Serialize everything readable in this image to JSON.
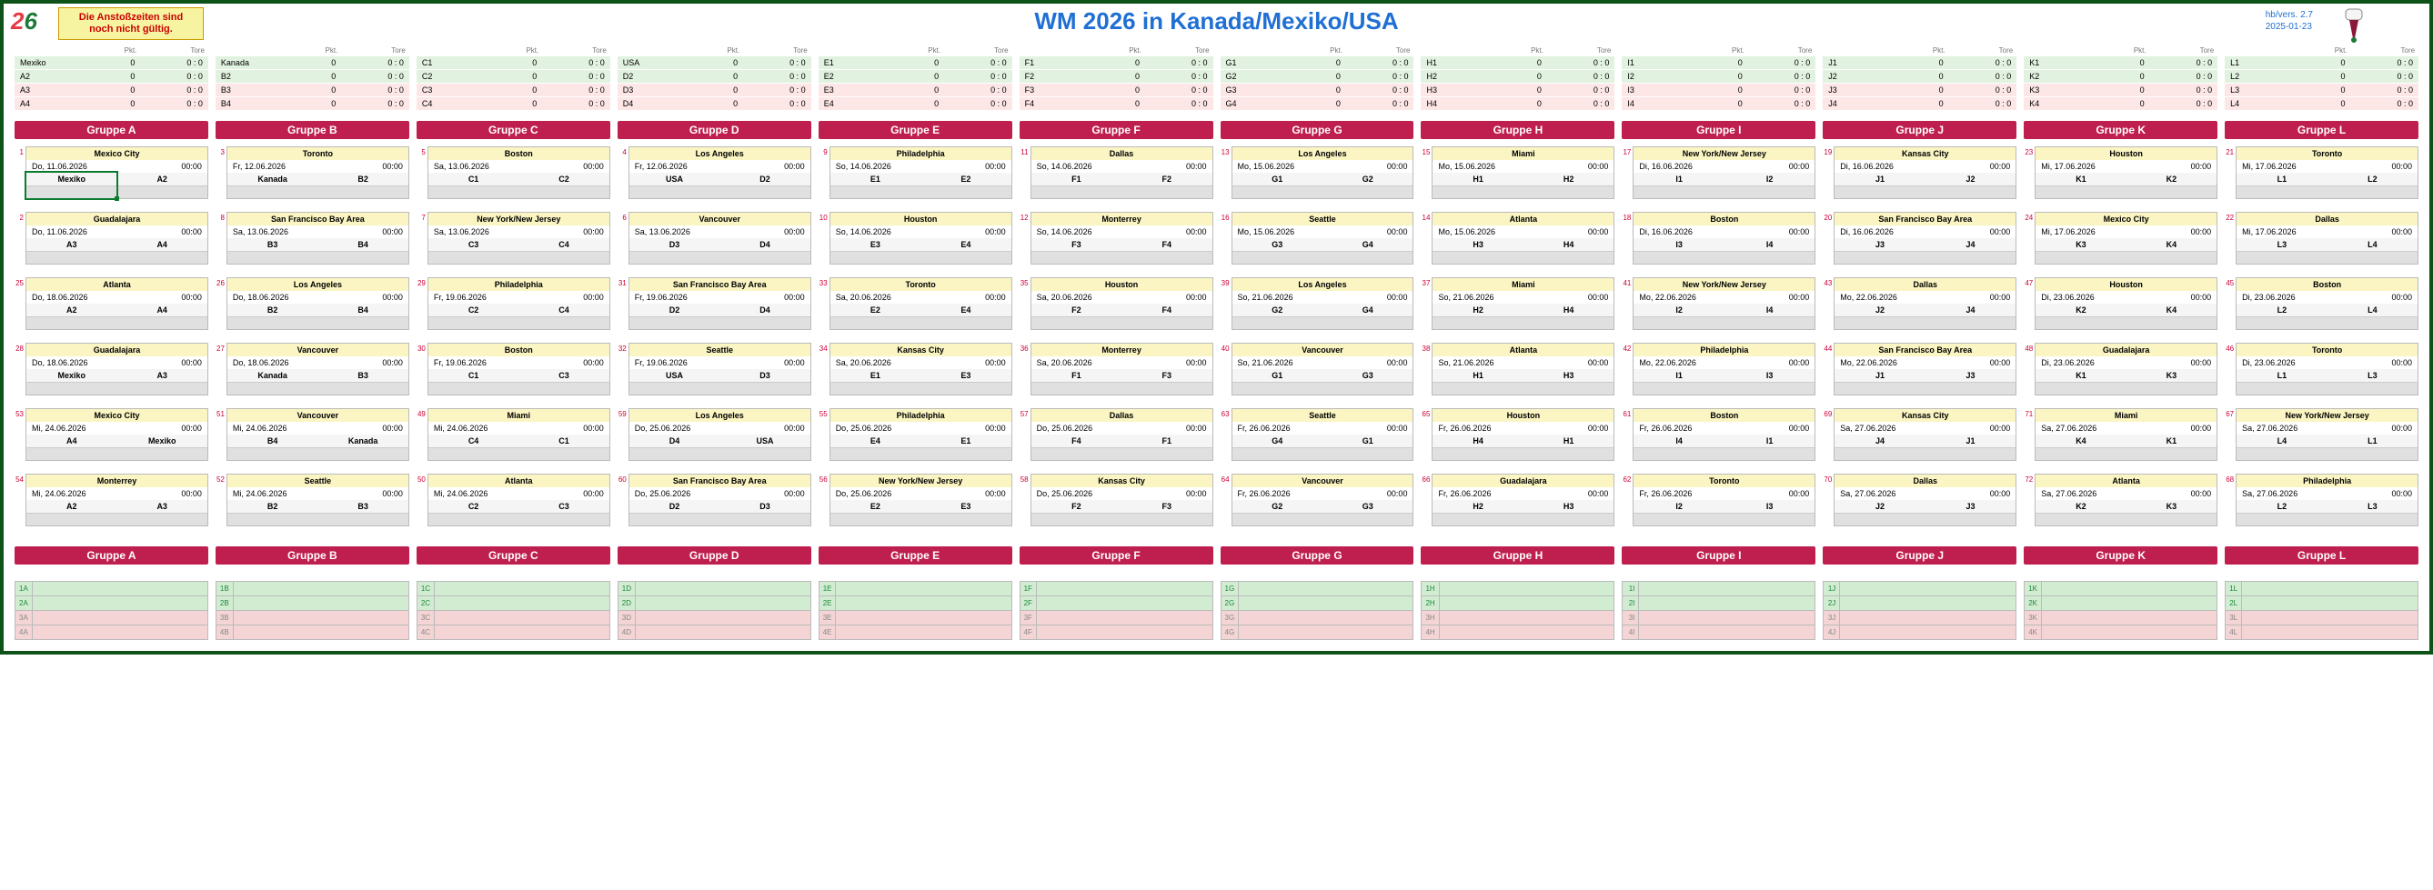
{
  "meta": {
    "title": "WM 2026 in Kanada/Mexiko/USA",
    "warning": "Die Anstoßzeiten sind noch nicht gültig.",
    "version": "hb/vers. 2.7",
    "date": "2025-01-23",
    "colors": {
      "border": "#0d5218",
      "title": "#1f6fd4",
      "group_hdr_bg": "#bf1f4e",
      "match_num": "#cc0033",
      "venue_bg": "#faf5c2"
    }
  },
  "groups": [
    "A",
    "B",
    "C",
    "D",
    "E",
    "F",
    "G",
    "H",
    "I",
    "J",
    "K",
    "L"
  ],
  "standings_headers": [
    "",
    "Pkt.",
    "Tore"
  ],
  "standings": {
    "A": [
      [
        "Mexiko",
        "0",
        "0 : 0"
      ],
      [
        "A2",
        "0",
        "0 : 0"
      ],
      [
        "A3",
        "0",
        "0 : 0"
      ],
      [
        "A4",
        "0",
        "0 : 0"
      ]
    ],
    "B": [
      [
        "Kanada",
        "0",
        "0 : 0"
      ],
      [
        "B2",
        "0",
        "0 : 0"
      ],
      [
        "B3",
        "0",
        "0 : 0"
      ],
      [
        "B4",
        "0",
        "0 : 0"
      ]
    ],
    "C": [
      [
        "C1",
        "0",
        "0 : 0"
      ],
      [
        "C2",
        "0",
        "0 : 0"
      ],
      [
        "C3",
        "0",
        "0 : 0"
      ],
      [
        "C4",
        "0",
        "0 : 0"
      ]
    ],
    "D": [
      [
        "USA",
        "0",
        "0 : 0"
      ],
      [
        "D2",
        "0",
        "0 : 0"
      ],
      [
        "D3",
        "0",
        "0 : 0"
      ],
      [
        "D4",
        "0",
        "0 : 0"
      ]
    ],
    "E": [
      [
        "E1",
        "0",
        "0 : 0"
      ],
      [
        "E2",
        "0",
        "0 : 0"
      ],
      [
        "E3",
        "0",
        "0 : 0"
      ],
      [
        "E4",
        "0",
        "0 : 0"
      ]
    ],
    "F": [
      [
        "F1",
        "0",
        "0 : 0"
      ],
      [
        "F2",
        "0",
        "0 : 0"
      ],
      [
        "F3",
        "0",
        "0 : 0"
      ],
      [
        "F4",
        "0",
        "0 : 0"
      ]
    ],
    "G": [
      [
        "G1",
        "0",
        "0 : 0"
      ],
      [
        "G2",
        "0",
        "0 : 0"
      ],
      [
        "G3",
        "0",
        "0 : 0"
      ],
      [
        "G4",
        "0",
        "0 : 0"
      ]
    ],
    "H": [
      [
        "H1",
        "0",
        "0 : 0"
      ],
      [
        "H2",
        "0",
        "0 : 0"
      ],
      [
        "H3",
        "0",
        "0 : 0"
      ],
      [
        "H4",
        "0",
        "0 : 0"
      ]
    ],
    "I": [
      [
        "I1",
        "0",
        "0 : 0"
      ],
      [
        "I2",
        "0",
        "0 : 0"
      ],
      [
        "I3",
        "0",
        "0 : 0"
      ],
      [
        "I4",
        "0",
        "0 : 0"
      ]
    ],
    "J": [
      [
        "J1",
        "0",
        "0 : 0"
      ],
      [
        "J2",
        "0",
        "0 : 0"
      ],
      [
        "J3",
        "0",
        "0 : 0"
      ],
      [
        "J4",
        "0",
        "0 : 0"
      ]
    ],
    "K": [
      [
        "K1",
        "0",
        "0 : 0"
      ],
      [
        "K2",
        "0",
        "0 : 0"
      ],
      [
        "K3",
        "0",
        "0 : 0"
      ],
      [
        "K4",
        "0",
        "0 : 0"
      ]
    ],
    "L": [
      [
        "L1",
        "0",
        "0 : 0"
      ],
      [
        "L2",
        "0",
        "0 : 0"
      ],
      [
        "L3",
        "0",
        "0 : 0"
      ],
      [
        "L4",
        "0",
        "0 : 0"
      ]
    ]
  },
  "group_label": "Gruppe",
  "matches": {
    "A": [
      {
        "n": 1,
        "v": "Mexico City",
        "d": "Do, 11.06.2026",
        "t": "00:00",
        "h": "Mexiko",
        "a": "A2"
      },
      {
        "n": 2,
        "v": "Guadalajara",
        "d": "Do, 11.06.2026",
        "t": "00:00",
        "h": "A3",
        "a": "A4"
      },
      {
        "n": 25,
        "v": "Atlanta",
        "d": "Do, 18.06.2026",
        "t": "00:00",
        "h": "A2",
        "a": "A4"
      },
      {
        "n": 28,
        "v": "Guadalajara",
        "d": "Do, 18.06.2026",
        "t": "00:00",
        "h": "Mexiko",
        "a": "A3"
      },
      {
        "n": 53,
        "v": "Mexico City",
        "d": "Mi, 24.06.2026",
        "t": "00:00",
        "h": "A4",
        "a": "Mexiko"
      },
      {
        "n": 54,
        "v": "Monterrey",
        "d": "Mi, 24.06.2026",
        "t": "00:00",
        "h": "A2",
        "a": "A3"
      }
    ],
    "B": [
      {
        "n": 3,
        "v": "Toronto",
        "d": "Fr, 12.06.2026",
        "t": "00:00",
        "h": "Kanada",
        "a": "B2"
      },
      {
        "n": 8,
        "v": "San Francisco Bay Area",
        "d": "Sa, 13.06.2026",
        "t": "00:00",
        "h": "B3",
        "a": "B4"
      },
      {
        "n": 26,
        "v": "Los Angeles",
        "d": "Do, 18.06.2026",
        "t": "00:00",
        "h": "B2",
        "a": "B4"
      },
      {
        "n": 27,
        "v": "Vancouver",
        "d": "Do, 18.06.2026",
        "t": "00:00",
        "h": "Kanada",
        "a": "B3"
      },
      {
        "n": 51,
        "v": "Vancouver",
        "d": "Mi, 24.06.2026",
        "t": "00:00",
        "h": "B4",
        "a": "Kanada"
      },
      {
        "n": 52,
        "v": "Seattle",
        "d": "Mi, 24.06.2026",
        "t": "00:00",
        "h": "B2",
        "a": "B3"
      }
    ],
    "C": [
      {
        "n": 5,
        "v": "Boston",
        "d": "Sa, 13.06.2026",
        "t": "00:00",
        "h": "C1",
        "a": "C2"
      },
      {
        "n": 7,
        "v": "New York/New Jersey",
        "d": "Sa, 13.06.2026",
        "t": "00:00",
        "h": "C3",
        "a": "C4"
      },
      {
        "n": 29,
        "v": "Philadelphia",
        "d": "Fr, 19.06.2026",
        "t": "00:00",
        "h": "C2",
        "a": "C4"
      },
      {
        "n": 30,
        "v": "Boston",
        "d": "Fr, 19.06.2026",
        "t": "00:00",
        "h": "C1",
        "a": "C3"
      },
      {
        "n": 49,
        "v": "Miami",
        "d": "Mi, 24.06.2026",
        "t": "00:00",
        "h": "C4",
        "a": "C1"
      },
      {
        "n": 50,
        "v": "Atlanta",
        "d": "Mi, 24.06.2026",
        "t": "00:00",
        "h": "C2",
        "a": "C3"
      }
    ],
    "D": [
      {
        "n": 4,
        "v": "Los Angeles",
        "d": "Fr, 12.06.2026",
        "t": "00:00",
        "h": "USA",
        "a": "D2"
      },
      {
        "n": 6,
        "v": "Vancouver",
        "d": "Sa, 13.06.2026",
        "t": "00:00",
        "h": "D3",
        "a": "D4"
      },
      {
        "n": 31,
        "v": "San Francisco Bay Area",
        "d": "Fr, 19.06.2026",
        "t": "00:00",
        "h": "D2",
        "a": "D4"
      },
      {
        "n": 32,
        "v": "Seattle",
        "d": "Fr, 19.06.2026",
        "t": "00:00",
        "h": "USA",
        "a": "D3"
      },
      {
        "n": 59,
        "v": "Los Angeles",
        "d": "Do, 25.06.2026",
        "t": "00:00",
        "h": "D4",
        "a": "USA"
      },
      {
        "n": 60,
        "v": "San Francisco Bay Area",
        "d": "Do, 25.06.2026",
        "t": "00:00",
        "h": "D2",
        "a": "D3"
      }
    ],
    "E": [
      {
        "n": 9,
        "v": "Philadelphia",
        "d": "So, 14.06.2026",
        "t": "00:00",
        "h": "E1",
        "a": "E2"
      },
      {
        "n": 10,
        "v": "Houston",
        "d": "So, 14.06.2026",
        "t": "00:00",
        "h": "E3",
        "a": "E4"
      },
      {
        "n": 33,
        "v": "Toronto",
        "d": "Sa, 20.06.2026",
        "t": "00:00",
        "h": "E2",
        "a": "E4"
      },
      {
        "n": 34,
        "v": "Kansas City",
        "d": "Sa, 20.06.2026",
        "t": "00:00",
        "h": "E1",
        "a": "E3"
      },
      {
        "n": 55,
        "v": "Philadelphia",
        "d": "Do, 25.06.2026",
        "t": "00:00",
        "h": "E4",
        "a": "E1"
      },
      {
        "n": 56,
        "v": "New York/New Jersey",
        "d": "Do, 25.06.2026",
        "t": "00:00",
        "h": "E2",
        "a": "E3"
      }
    ],
    "F": [
      {
        "n": 11,
        "v": "Dallas",
        "d": "So, 14.06.2026",
        "t": "00:00",
        "h": "F1",
        "a": "F2"
      },
      {
        "n": 12,
        "v": "Monterrey",
        "d": "So, 14.06.2026",
        "t": "00:00",
        "h": "F3",
        "a": "F4"
      },
      {
        "n": 35,
        "v": "Houston",
        "d": "Sa, 20.06.2026",
        "t": "00:00",
        "h": "F2",
        "a": "F4"
      },
      {
        "n": 36,
        "v": "Monterrey",
        "d": "Sa, 20.06.2026",
        "t": "00:00",
        "h": "F1",
        "a": "F3"
      },
      {
        "n": 57,
        "v": "Dallas",
        "d": "Do, 25.06.2026",
        "t": "00:00",
        "h": "F4",
        "a": "F1"
      },
      {
        "n": 58,
        "v": "Kansas City",
        "d": "Do, 25.06.2026",
        "t": "00:00",
        "h": "F2",
        "a": "F3"
      }
    ],
    "G": [
      {
        "n": 13,
        "v": "Los Angeles",
        "d": "Mo, 15.06.2026",
        "t": "00:00",
        "h": "G1",
        "a": "G2"
      },
      {
        "n": 16,
        "v": "Seattle",
        "d": "Mo, 15.06.2026",
        "t": "00:00",
        "h": "G3",
        "a": "G4"
      },
      {
        "n": 39,
        "v": "Los Angeles",
        "d": "So, 21.06.2026",
        "t": "00:00",
        "h": "G2",
        "a": "G4"
      },
      {
        "n": 40,
        "v": "Vancouver",
        "d": "So, 21.06.2026",
        "t": "00:00",
        "h": "G1",
        "a": "G3"
      },
      {
        "n": 63,
        "v": "Seattle",
        "d": "Fr, 26.06.2026",
        "t": "00:00",
        "h": "G4",
        "a": "G1"
      },
      {
        "n": 64,
        "v": "Vancouver",
        "d": "Fr, 26.06.2026",
        "t": "00:00",
        "h": "G2",
        "a": "G3"
      }
    ],
    "H": [
      {
        "n": 15,
        "v": "Miami",
        "d": "Mo, 15.06.2026",
        "t": "00:00",
        "h": "H1",
        "a": "H2"
      },
      {
        "n": 14,
        "v": "Atlanta",
        "d": "Mo, 15.06.2026",
        "t": "00:00",
        "h": "H3",
        "a": "H4"
      },
      {
        "n": 37,
        "v": "Miami",
        "d": "So, 21.06.2026",
        "t": "00:00",
        "h": "H2",
        "a": "H4"
      },
      {
        "n": 38,
        "v": "Atlanta",
        "d": "So, 21.06.2026",
        "t": "00:00",
        "h": "H1",
        "a": "H3"
      },
      {
        "n": 65,
        "v": "Houston",
        "d": "Fr, 26.06.2026",
        "t": "00:00",
        "h": "H4",
        "a": "H1"
      },
      {
        "n": 66,
        "v": "Guadalajara",
        "d": "Fr, 26.06.2026",
        "t": "00:00",
        "h": "H2",
        "a": "H3"
      }
    ],
    "I": [
      {
        "n": 17,
        "v": "New York/New Jersey",
        "d": "Di, 16.06.2026",
        "t": "00:00",
        "h": "I1",
        "a": "I2"
      },
      {
        "n": 18,
        "v": "Boston",
        "d": "Di, 16.06.2026",
        "t": "00:00",
        "h": "I3",
        "a": "I4"
      },
      {
        "n": 41,
        "v": "New York/New Jersey",
        "d": "Mo, 22.06.2026",
        "t": "00:00",
        "h": "I2",
        "a": "I4"
      },
      {
        "n": 42,
        "v": "Philadelphia",
        "d": "Mo, 22.06.2026",
        "t": "00:00",
        "h": "I1",
        "a": "I3"
      },
      {
        "n": 61,
        "v": "Boston",
        "d": "Fr, 26.06.2026",
        "t": "00:00",
        "h": "I4",
        "a": "I1"
      },
      {
        "n": 62,
        "v": "Toronto",
        "d": "Fr, 26.06.2026",
        "t": "00:00",
        "h": "I2",
        "a": "I3"
      }
    ],
    "J": [
      {
        "n": 19,
        "v": "Kansas City",
        "d": "Di, 16.06.2026",
        "t": "00:00",
        "h": "J1",
        "a": "J2"
      },
      {
        "n": 20,
        "v": "San Francisco Bay Area",
        "d": "Di, 16.06.2026",
        "t": "00:00",
        "h": "J3",
        "a": "J4"
      },
      {
        "n": 43,
        "v": "Dallas",
        "d": "Mo, 22.06.2026",
        "t": "00:00",
        "h": "J2",
        "a": "J4"
      },
      {
        "n": 44,
        "v": "San Francisco Bay Area",
        "d": "Mo, 22.06.2026",
        "t": "00:00",
        "h": "J1",
        "a": "J3"
      },
      {
        "n": 69,
        "v": "Kansas City",
        "d": "Sa, 27.06.2026",
        "t": "00:00",
        "h": "J4",
        "a": "J1"
      },
      {
        "n": 70,
        "v": "Dallas",
        "d": "Sa, 27.06.2026",
        "t": "00:00",
        "h": "J2",
        "a": "J3"
      }
    ],
    "K": [
      {
        "n": 23,
        "v": "Houston",
        "d": "Mi, 17.06.2026",
        "t": "00:00",
        "h": "K1",
        "a": "K2"
      },
      {
        "n": 24,
        "v": "Mexico City",
        "d": "Mi, 17.06.2026",
        "t": "00:00",
        "h": "K3",
        "a": "K4"
      },
      {
        "n": 47,
        "v": "Houston",
        "d": "Di, 23.06.2026",
        "t": "00:00",
        "h": "K2",
        "a": "K4"
      },
      {
        "n": 48,
        "v": "Guadalajara",
        "d": "Di, 23.06.2026",
        "t": "00:00",
        "h": "K1",
        "a": "K3"
      },
      {
        "n": 71,
        "v": "Miami",
        "d": "Sa, 27.06.2026",
        "t": "00:00",
        "h": "K4",
        "a": "K1"
      },
      {
        "n": 72,
        "v": "Atlanta",
        "d": "Sa, 27.06.2026",
        "t": "00:00",
        "h": "K2",
        "a": "K3"
      }
    ],
    "L": [
      {
        "n": 21,
        "v": "Toronto",
        "d": "Mi, 17.06.2026",
        "t": "00:00",
        "h": "L1",
        "a": "L2"
      },
      {
        "n": 22,
        "v": "Dallas",
        "d": "Mi, 17.06.2026",
        "t": "00:00",
        "h": "L3",
        "a": "L4"
      },
      {
        "n": 45,
        "v": "Boston",
        "d": "Di, 23.06.2026",
        "t": "00:00",
        "h": "L2",
        "a": "L4"
      },
      {
        "n": 46,
        "v": "Toronto",
        "d": "Di, 23.06.2026",
        "t": "00:00",
        "h": "L1",
        "a": "L3"
      },
      {
        "n": 67,
        "v": "New York/New Jersey",
        "d": "Sa, 27.06.2026",
        "t": "00:00",
        "h": "L4",
        "a": "L1"
      },
      {
        "n": 68,
        "v": "Philadelphia",
        "d": "Sa, 27.06.2026",
        "t": "00:00",
        "h": "L2",
        "a": "L3"
      }
    ]
  }
}
